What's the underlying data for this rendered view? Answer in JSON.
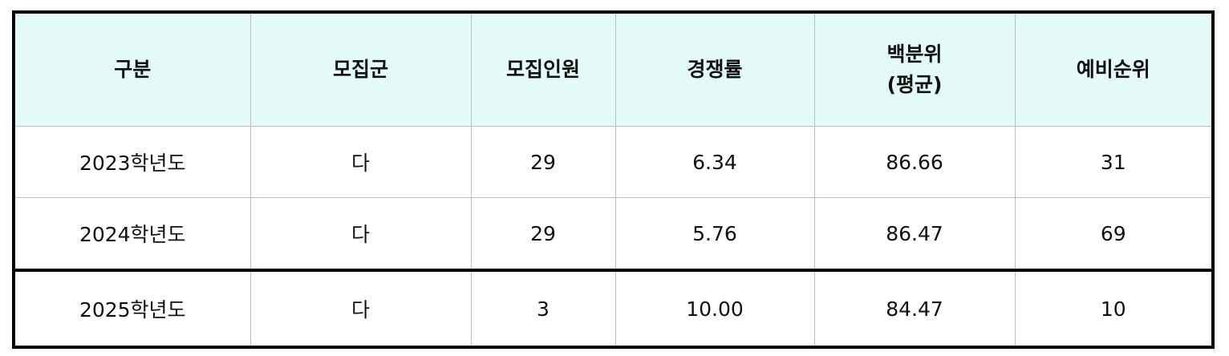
{
  "header": {
    "columns": [
      "구분",
      "모집군",
      "모집인원",
      "경쟁률",
      "백분위\n(평균)",
      "예비순위"
    ],
    "percentile_line1": "백분위",
    "percentile_line2": "(평균)"
  },
  "rows": [
    [
      "2023학년도",
      "다",
      "29",
      "6.34",
      "86.66",
      "31"
    ],
    [
      "2024학년도",
      "다",
      "29",
      "5.76",
      "86.47",
      "69"
    ],
    [
      "2025학년도",
      "다",
      "3",
      "10.00",
      "84.47",
      "10"
    ]
  ],
  "colors": {
    "header_bg": "#e4fbf9",
    "border": "#000000",
    "grid": "#bdbdbd"
  }
}
